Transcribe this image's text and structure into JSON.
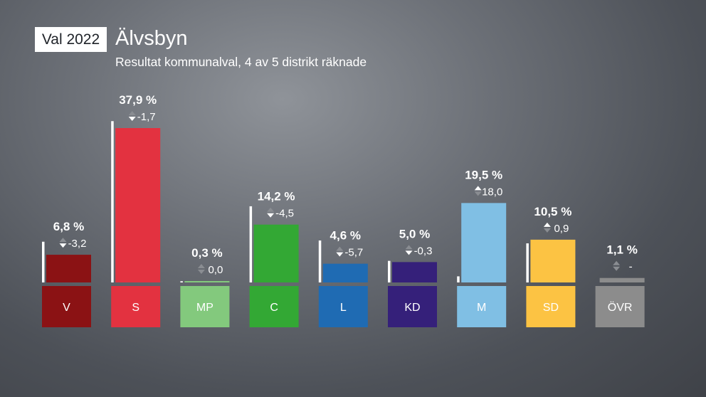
{
  "header": {
    "badge": "Val 2022",
    "title": "Älvsbyn",
    "subtitle": "Resultat kommunalval, 4 av 5 distrikt räknade"
  },
  "chart_data": {
    "type": "bar",
    "title": "Älvsbyn",
    "subtitle": "Resultat kommunalval, 4 av 5 distrikt räknade",
    "categories": [
      "V",
      "S",
      "MP",
      "C",
      "L",
      "KD",
      "M",
      "SD",
      "ÖVR"
    ],
    "values": [
      6.8,
      37.9,
      0.3,
      14.2,
      4.6,
      5.0,
      19.5,
      10.5,
      1.1
    ],
    "labels": [
      "6,8 %",
      "37,9 %",
      "0,3 %",
      "14,2 %",
      "4,6 %",
      "5,0 %",
      "19,5 %",
      "10,5 %",
      "1,1 %"
    ],
    "previous_values": [
      10.0,
      39.6,
      0.3,
      18.7,
      10.3,
      5.3,
      1.5,
      9.6,
      null
    ],
    "change_labels": [
      "-3,2",
      "-1,7",
      "0,0",
      "-4,5",
      "-5,7",
      "-0,3",
      "18,0",
      "0,9",
      "-"
    ],
    "change_direction": [
      "down",
      "down",
      "neutral",
      "down",
      "down",
      "down",
      "up",
      "up",
      "neutral"
    ],
    "colors": [
      "#8b1214",
      "#e33240",
      "#83c97d",
      "#33a834",
      "#1f6bb3",
      "#35207a",
      "#80bfe4",
      "#fcc343",
      "#8c8c8c"
    ],
    "label_colors": [
      "#ffffff",
      "#ffffff",
      "#ffffff",
      "#ffffff",
      "#ffffff",
      "#ffffff",
      "#ffffff",
      "#ffffff",
      "#ffffff"
    ],
    "ylim": [
      0,
      40
    ],
    "grid": false,
    "legend": "none"
  }
}
